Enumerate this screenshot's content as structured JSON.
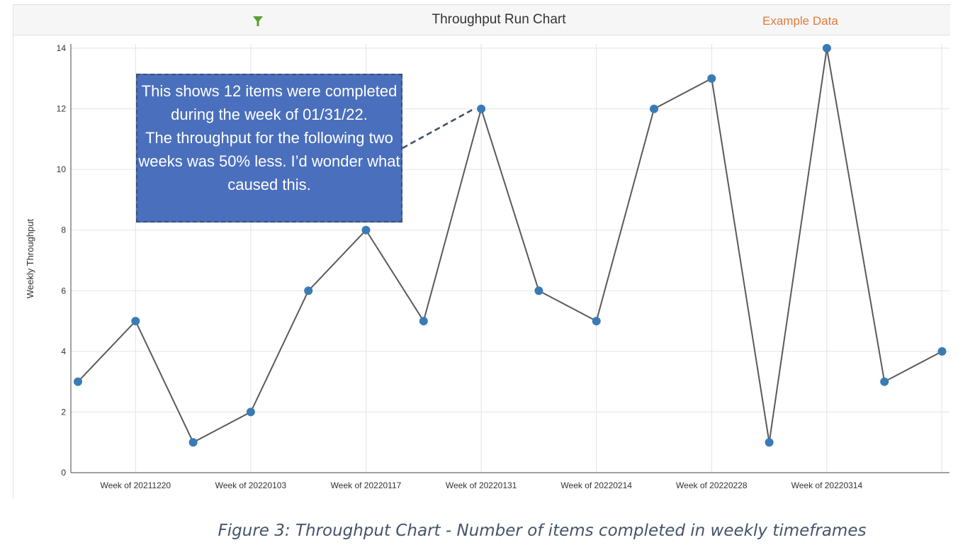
{
  "header": {
    "title": "Throughput Run Chart",
    "example_label": "Example Data",
    "filter_icon": "filter-icon",
    "colors": {
      "filter": "#5a9e2f",
      "example": "#e07b3c"
    }
  },
  "chart_data": {
    "type": "line",
    "title": "Throughput Run Chart",
    "xlabel": "",
    "ylabel": "Weekly Throughput",
    "ylim": [
      0,
      14
    ],
    "yticks": [
      0,
      2,
      4,
      6,
      8,
      10,
      12,
      14
    ],
    "grid": true,
    "x_tick_labels": [
      "Week of 20211220",
      "Week of 20220103",
      "Week of 20220117",
      "Week of 20220131",
      "Week of 20220214",
      "Week of 20220228",
      "Week of 20220314"
    ],
    "x_tick_indices": [
      1,
      3,
      5,
      7,
      9,
      11,
      13
    ],
    "series": [
      {
        "name": "Weekly Throughput",
        "color": "#5a5a5a",
        "marker_color": "#3a7bb5",
        "values": [
          3,
          5,
          1,
          2,
          6,
          8,
          5,
          12,
          6,
          5,
          12,
          13,
          1,
          14,
          3,
          4
        ]
      }
    ],
    "annotation": {
      "text": "This shows 12 items were completed during the week of 01/31/22.\nThe throughput for the following two weeks was 50% less. I’d wonder what caused this.",
      "target_index": 7,
      "color": "#4a6fbd"
    }
  },
  "caption": "Figure 3: Throughput Chart - Number of items completed in weekly timeframes"
}
